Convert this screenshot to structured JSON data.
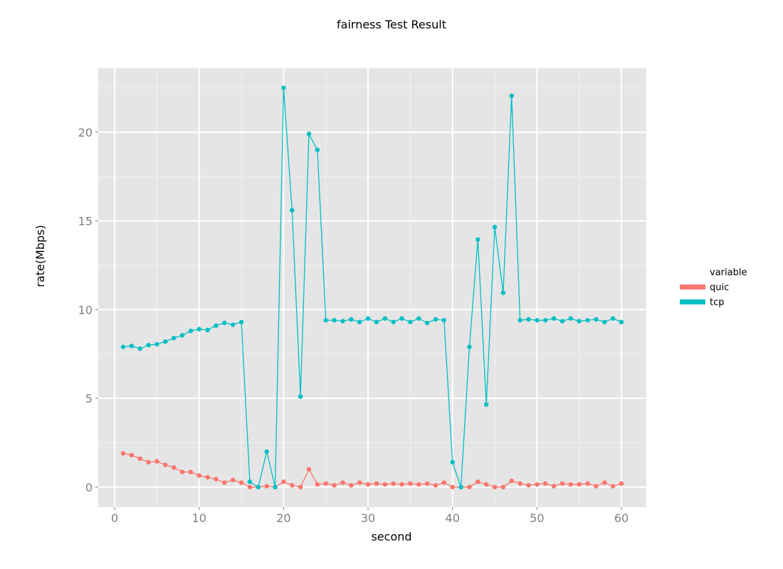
{
  "chart_data": {
    "type": "line",
    "title": "fairness Test Result",
    "xlabel": "second",
    "ylabel": "rate(Mbps)",
    "xlim": [
      -1.95,
      62.95
    ],
    "ylim": [
      -1.13,
      23.6
    ],
    "xticks": [
      0,
      10,
      20,
      30,
      40,
      50,
      60
    ],
    "xtick_labels": [
      "0",
      "10",
      "20",
      "30",
      "40",
      "50",
      "60"
    ],
    "yticks": [
      0,
      5,
      10,
      15,
      20
    ],
    "ytick_labels": [
      "0",
      "5",
      "10",
      "15",
      "20"
    ],
    "grid": true,
    "legend": {
      "title": "variable",
      "position": "right"
    },
    "x": [
      1,
      2,
      3,
      4,
      5,
      6,
      7,
      8,
      9,
      10,
      11,
      12,
      13,
      14,
      15,
      16,
      17,
      18,
      19,
      20,
      21,
      22,
      23,
      24,
      25,
      26,
      27,
      28,
      29,
      30,
      31,
      32,
      33,
      34,
      35,
      36,
      37,
      38,
      39,
      40,
      41,
      42,
      43,
      44,
      45,
      46,
      47,
      48,
      49,
      50,
      51,
      52,
      53,
      54,
      55,
      56,
      57,
      58,
      59,
      60
    ],
    "series": [
      {
        "name": "quic",
        "color": "#f8766d",
        "values": [
          1.9,
          1.8,
          1.6,
          1.4,
          1.45,
          1.25,
          1.1,
          0.85,
          0.85,
          0.65,
          0.55,
          0.45,
          0.25,
          0.4,
          0.25,
          0.0,
          0.0,
          0.05,
          0.0,
          0.3,
          0.1,
          0.0,
          1.0,
          0.15,
          0.2,
          0.1,
          0.25,
          0.1,
          0.25,
          0.15,
          0.2,
          0.15,
          0.2,
          0.15,
          0.2,
          0.15,
          0.2,
          0.1,
          0.25,
          0.0,
          0.0,
          0.0,
          0.3,
          0.15,
          0.0,
          0.0,
          0.35,
          0.2,
          0.1,
          0.15,
          0.2,
          0.05,
          0.2,
          0.15,
          0.15,
          0.2,
          0.05,
          0.25,
          0.05,
          0.2
        ]
      },
      {
        "name": "tcp",
        "color": "#00bfc4",
        "values": [
          7.9,
          7.95,
          7.8,
          8.0,
          8.05,
          8.2,
          8.4,
          8.55,
          8.8,
          8.9,
          8.85,
          9.1,
          9.25,
          9.15,
          9.3,
          0.3,
          0.0,
          2.0,
          0.0,
          22.5,
          15.6,
          5.1,
          19.9,
          19.0,
          9.4,
          9.4,
          9.35,
          9.45,
          9.3,
          9.5,
          9.3,
          9.5,
          9.3,
          9.5,
          9.3,
          9.5,
          9.25,
          9.45,
          9.4,
          1.4,
          0.0,
          7.9,
          13.95,
          4.65,
          14.65,
          10.95,
          22.05,
          9.4,
          9.45,
          9.4,
          9.4,
          9.5,
          9.35,
          9.5,
          9.35,
          9.4,
          9.45,
          9.3,
          9.5,
          9.3
        ]
      }
    ]
  }
}
